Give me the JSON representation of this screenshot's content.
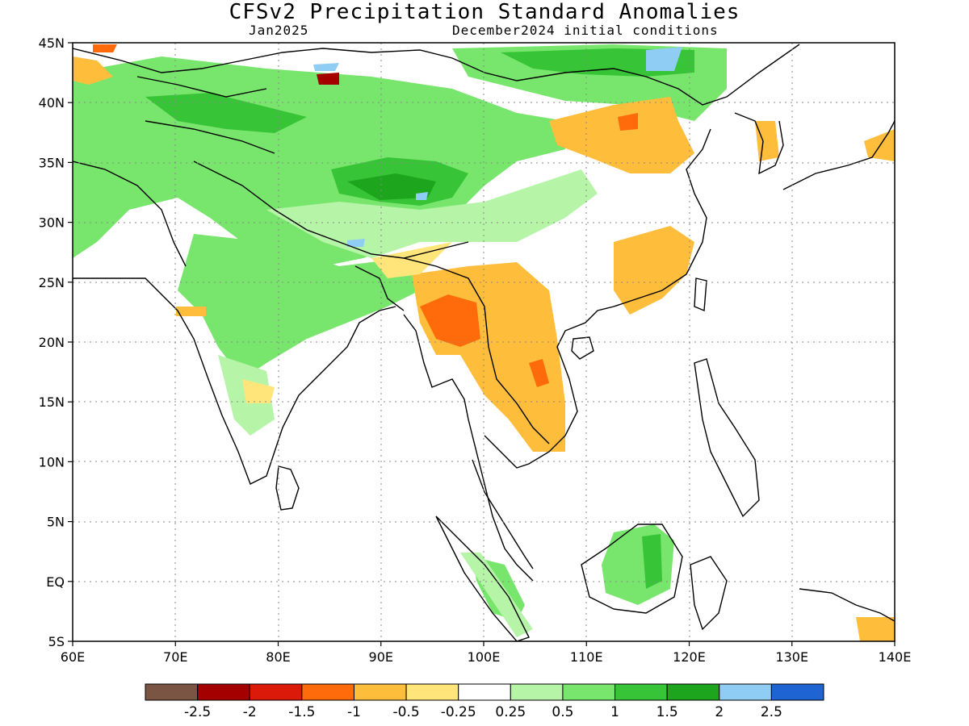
{
  "title": "CFSv2 Precipitation Standard Anomalies",
  "forecast_month": "Jan2025",
  "initial_conditions": "December2024 initial conditions",
  "lat_ticks": [
    "45N",
    "40N",
    "35N",
    "30N",
    "25N",
    "20N",
    "15N",
    "10N",
    "5N",
    "EQ",
    "5S"
  ],
  "lon_ticks": [
    "60E",
    "70E",
    "80E",
    "90E",
    "100E",
    "110E",
    "120E",
    "130E",
    "140E"
  ],
  "colorbar": {
    "colors": [
      "#7b5544",
      "#a50000",
      "#dc1a0a",
      "#ff6a0a",
      "#ffbd3c",
      "#ffe57a",
      "#ffffff",
      "#b6f5a8",
      "#78e66c",
      "#37c437",
      "#1ea51e",
      "#8fcdf5",
      "#1e64d2"
    ],
    "labels": [
      "-2.5",
      "-2",
      "-1.5",
      "-1",
      "-0.5",
      "-0.25",
      "0.25",
      "0.5",
      "1",
      "1.5",
      "2",
      "2.5"
    ]
  },
  "anomaly_colors": {
    "strong_dry": "#ff6a0a",
    "moderate_dry": "#ffbd3c",
    "weak_dry": "#ffe57a",
    "weak_wet": "#b6f5a8",
    "moderate_wet": "#78e66c",
    "strong_wet": "#37c437",
    "very_wet": "#1ea51e",
    "extreme_wet": "#8fcdf5",
    "extreme_wet_2": "#1e64d2",
    "extreme_dry": "#a50000"
  }
}
